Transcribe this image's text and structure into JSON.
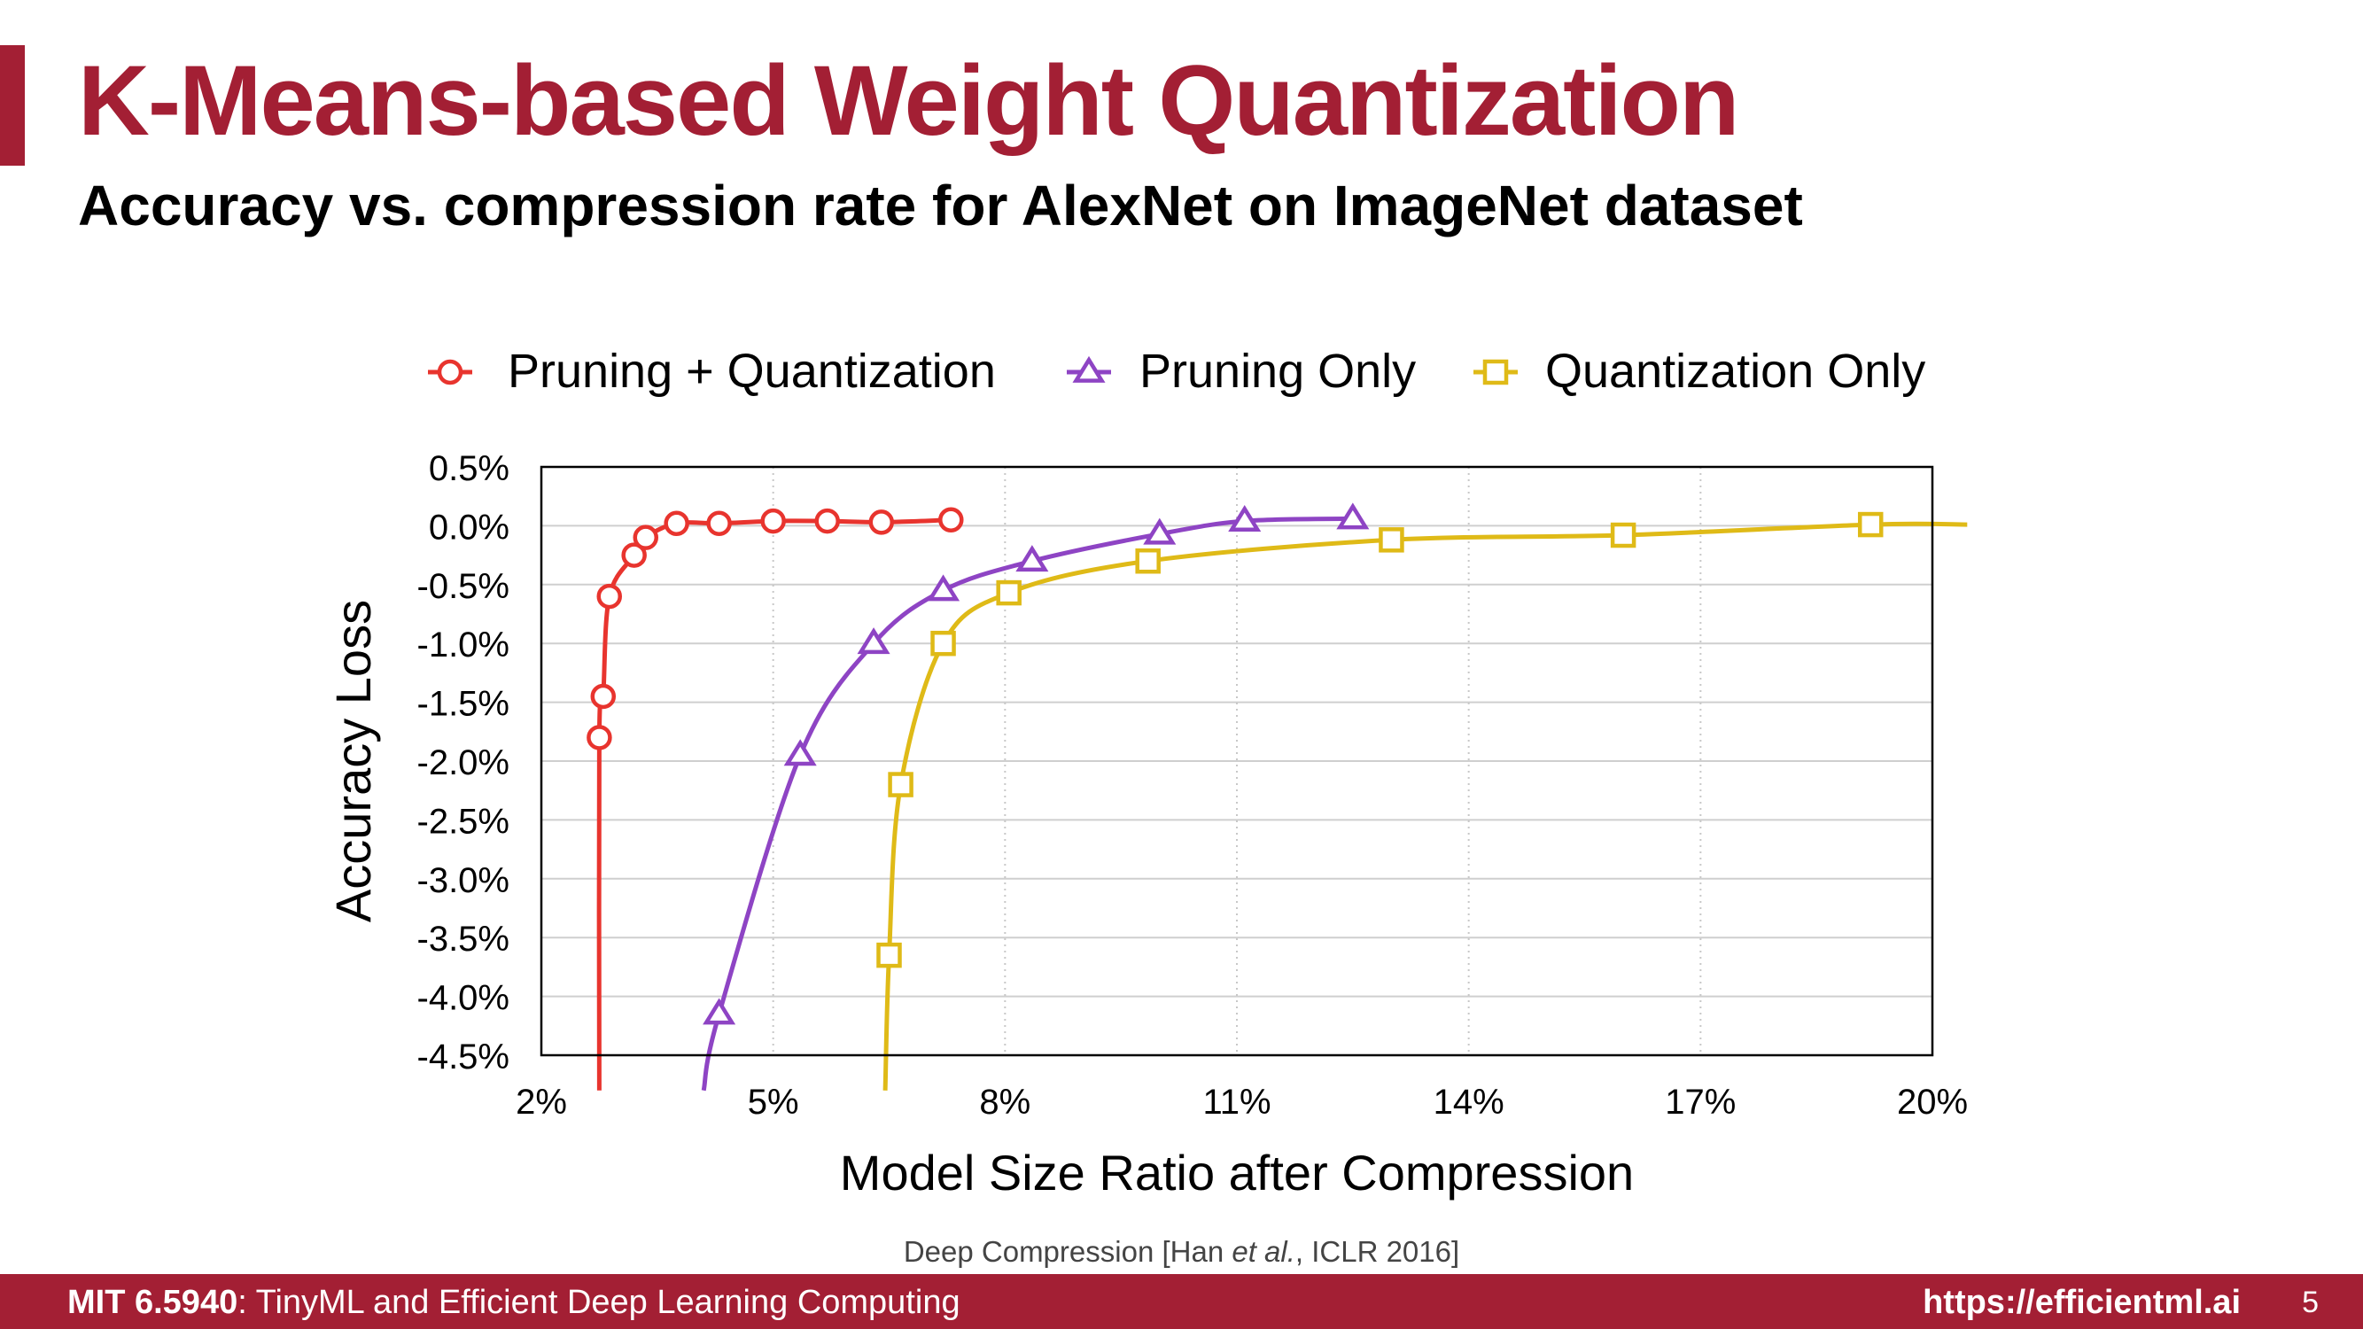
{
  "slide": {
    "title": "K-Means-based Weight Quantization",
    "subtitle": "Accuracy vs. compression rate for AlexNet on ImageNet dataset",
    "citation": {
      "prefix": "Deep Compression [Han ",
      "italic": "et al.",
      "suffix": ", ICLR 2016]"
    },
    "footer": {
      "course_code": "MIT 6.5940",
      "course_rest": ": TinyML and Efficient Deep Learning Computing",
      "url": "https://efficientml.ai",
      "page": "5"
    },
    "accent_color": "#a31f34"
  },
  "chart_data": {
    "type": "line",
    "xlabel": "Model Size Ratio after Compression",
    "ylabel": "Accuracy Loss",
    "xlim": [
      2,
      20
    ],
    "ylim": [
      -4.5,
      0.5
    ],
    "xticks": [
      2,
      5,
      8,
      11,
      14,
      17,
      20
    ],
    "xtick_labels": [
      "2%",
      "5%",
      "8%",
      "11%",
      "14%",
      "17%",
      "20%"
    ],
    "yticks": [
      0.5,
      0.0,
      -0.5,
      -1.0,
      -1.5,
      -2.0,
      -2.5,
      -3.0,
      -3.5,
      -4.0,
      -4.5
    ],
    "ytick_labels": [
      "0.5%",
      "0.0%",
      "-0.5%",
      "-1.0%",
      "-1.5%",
      "-2.0%",
      "-2.5%",
      "-3.0%",
      "-3.5%",
      "-4.0%",
      "-4.5%"
    ],
    "grid": true,
    "legend_position": "top",
    "series": [
      {
        "name": "Pruning + Quantization",
        "marker": "circle",
        "color": "#e8342e",
        "points": [
          [
            2.75,
            -1.8
          ],
          [
            2.8,
            -1.45
          ],
          [
            2.88,
            -0.6
          ],
          [
            3.2,
            -0.25
          ],
          [
            3.35,
            -0.1
          ],
          [
            3.75,
            0.02
          ],
          [
            4.3,
            0.02
          ],
          [
            5.0,
            0.04
          ],
          [
            5.7,
            0.04
          ],
          [
            6.4,
            0.03
          ],
          [
            7.3,
            0.05
          ]
        ],
        "tail_start": [
          2.75,
          -4.8
        ]
      },
      {
        "name": "Pruning Only",
        "marker": "triangle",
        "color": "#8e44c4",
        "points": [
          [
            4.3,
            -4.15
          ],
          [
            5.35,
            -1.95
          ],
          [
            6.3,
            -1.0
          ],
          [
            7.2,
            -0.55
          ],
          [
            8.35,
            -0.3
          ],
          [
            10.0,
            -0.07
          ],
          [
            11.1,
            0.04
          ],
          [
            12.5,
            0.06
          ]
        ],
        "tail_start": [
          4.1,
          -4.8
        ]
      },
      {
        "name": "Quantization Only",
        "marker": "square",
        "color": "#dfba17",
        "points": [
          [
            6.5,
            -3.65
          ],
          [
            6.65,
            -2.2
          ],
          [
            7.2,
            -1.0
          ],
          [
            8.05,
            -0.57
          ],
          [
            9.85,
            -0.3
          ],
          [
            13.0,
            -0.12
          ],
          [
            16.0,
            -0.08
          ],
          [
            19.2,
            0.01
          ]
        ],
        "tail_start": [
          6.45,
          -4.8
        ],
        "tail_end": [
          20.45,
          0.01
        ]
      }
    ]
  }
}
